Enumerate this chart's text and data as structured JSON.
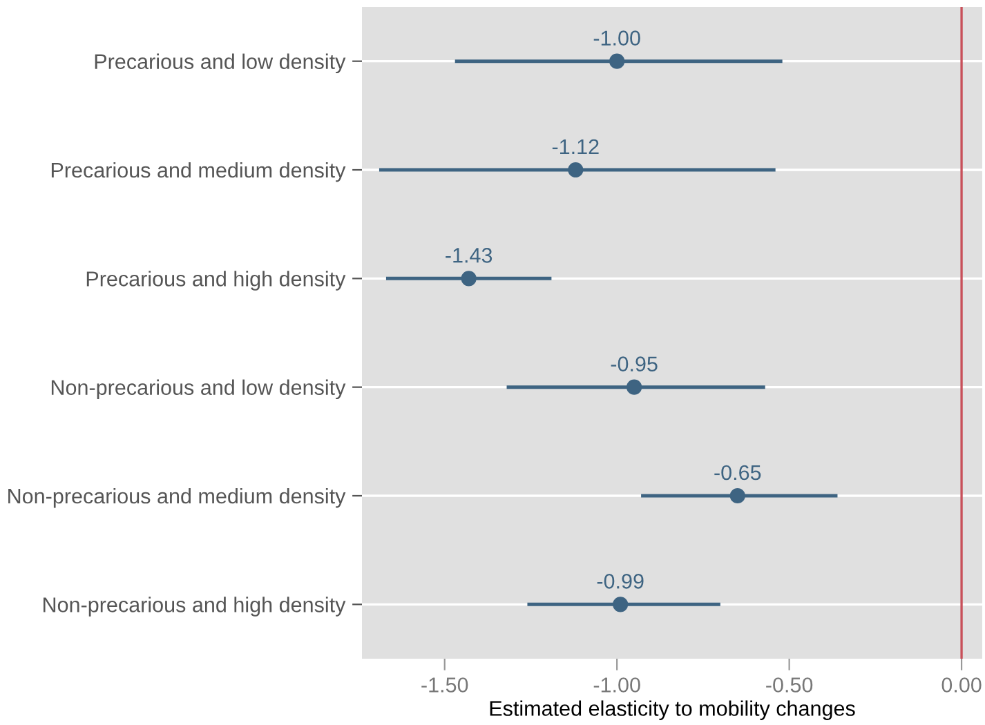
{
  "chart_data": {
    "type": "scatter",
    "orientation": "horizontal",
    "xlabel": "Estimated elasticity to mobility changes",
    "categories": [
      "Precarious and low density",
      "Precarious and medium density",
      "Precarious and high density",
      "Non-precarious and low density",
      "Non-precarious and medium density",
      "Non-precarious and high density"
    ],
    "values": [
      -1.0,
      -1.12,
      -1.43,
      -0.95,
      -0.65,
      -0.99
    ],
    "errors": [
      [
        -1.47,
        -0.52
      ],
      [
        -1.69,
        -0.54
      ],
      [
        -1.67,
        -1.19
      ],
      [
        -1.32,
        -0.57
      ],
      [
        -0.93,
        -0.36
      ],
      [
        -1.26,
        -0.7
      ]
    ],
    "value_labels": [
      "-1.00",
      "-1.12",
      "-1.43",
      "-0.95",
      "-0.65",
      "-0.99"
    ],
    "color": "#3e6482",
    "marker": "circle",
    "xlim": [
      -1.74,
      0.06
    ],
    "xticks": [
      {
        "value": -1.5,
        "label": "-1.50"
      },
      {
        "value": -1.0,
        "label": "-1.00"
      },
      {
        "value": -0.5,
        "label": "-0.50"
      },
      {
        "value": 0,
        "label": "0.00"
      }
    ],
    "ref_lines": [
      {
        "axis": "x",
        "value": 0,
        "color": "#c8505a"
      }
    ],
    "grid": "y"
  }
}
